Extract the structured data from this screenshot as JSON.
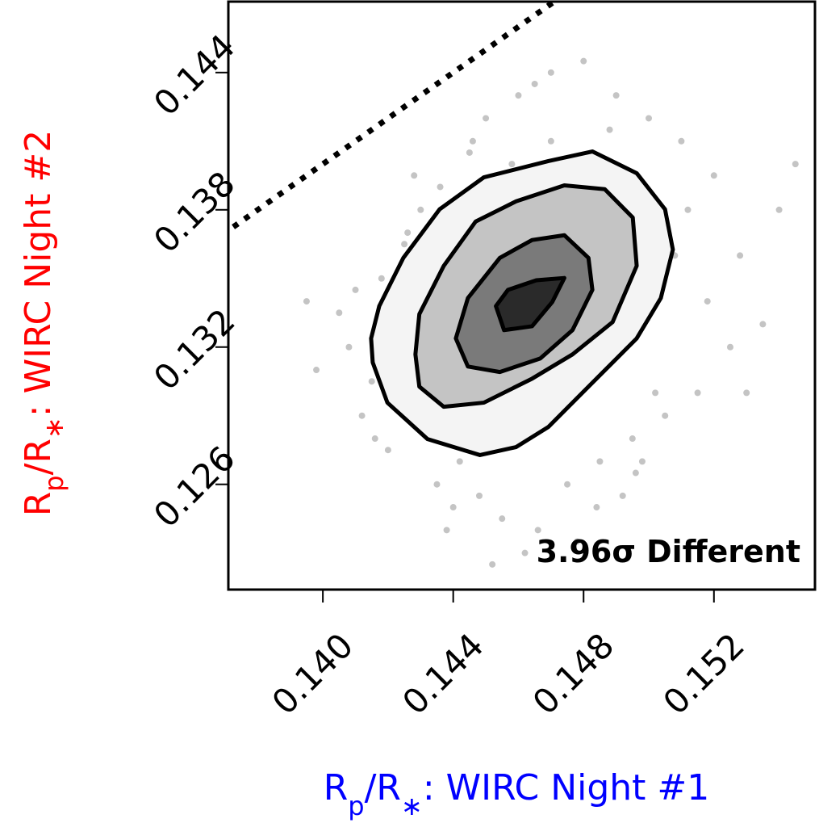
{
  "chart_data": {
    "type": "scatter",
    "annotation": "3.96σ Different",
    "xlabel": [
      "R",
      "p",
      "/R",
      "∗",
      ": WIRC Night #1"
    ],
    "ylabel": [
      "R",
      "p",
      "/R",
      "∗",
      ": WIRC Night #2"
    ],
    "xlabel_color": "#0000ff",
    "ylabel_color": "#ff0000",
    "xlim": [
      0.1371,
      0.1551
    ],
    "ylim": [
      0.1214,
      0.1471
    ],
    "xticks": [
      {
        "value": 0.14,
        "label": "0.140"
      },
      {
        "value": 0.144,
        "label": "0.144"
      },
      {
        "value": 0.148,
        "label": "0.148"
      },
      {
        "value": 0.152,
        "label": "0.152"
      }
    ],
    "yticks": [
      0.144,
      0.138,
      0.132,
      0.126
    ],
    "identity_line": true,
    "series": [
      {
        "color": "#555555",
        "x": [
          0.1398,
          0.1405,
          0.1412,
          0.1418,
          0.1408,
          0.142,
          0.1425,
          0.1415,
          0.143,
          0.1435,
          0.1428,
          0.144,
          0.1445,
          0.1438,
          0.145,
          0.1455,
          0.146,
          0.1448,
          0.1465,
          0.147,
          0.1475,
          0.148,
          0.1485,
          0.149,
          0.1495,
          0.15,
          0.1505,
          0.151,
          0.1515,
          0.152,
          0.1525,
          0.1512,
          0.1498,
          0.1508,
          0.1492,
          0.1478,
          0.1462,
          0.1452,
          0.1442,
          0.1432,
          0.1422,
          0.141,
          0.1502,
          0.1518,
          0.1528,
          0.1535,
          0.147,
          0.1458,
          0.1488,
          0.1436,
          0.1446,
          0.1466,
          0.1484,
          0.1496,
          0.1426,
          0.1416,
          0.153,
          0.154,
          0.1395,
          0.1545
        ],
        "values": [
          0.131,
          0.1335,
          0.129,
          0.135,
          0.132,
          0.1275,
          0.1365,
          0.1305,
          0.138,
          0.126,
          0.1395,
          0.125,
          0.1405,
          0.124,
          0.142,
          0.1245,
          0.143,
          0.1255,
          0.1435,
          0.144,
          0.126,
          0.1445,
          0.127,
          0.143,
          0.128,
          0.142,
          0.129,
          0.141,
          0.13,
          0.1395,
          0.132,
          0.138,
          0.127,
          0.136,
          0.1255,
          0.1235,
          0.123,
          0.1225,
          0.127,
          0.1285,
          0.13,
          0.1345,
          0.13,
          0.134,
          0.136,
          0.133,
          0.141,
          0.14,
          0.1415,
          0.139,
          0.141,
          0.124,
          0.125,
          0.1265,
          0.137,
          0.128,
          0.13,
          0.138,
          0.134,
          0.14
        ]
      }
    ],
    "contours": [
      {
        "fill": "#f4f4f4",
        "x": [
          0.14148,
          0.14173,
          0.14247,
          0.14358,
          0.14494,
          0.14692,
          0.14827,
          0.14963,
          0.1505,
          0.15074,
          0.15037,
          0.14963,
          0.14815,
          0.14692,
          0.14593,
          0.14482,
          0.14321,
          0.14198,
          0.14153
        ],
        "y": [
          0.13238,
          0.13379,
          0.1359,
          0.13802,
          0.13942,
          0.14013,
          0.14055,
          0.1396,
          0.13802,
          0.13626,
          0.13414,
          0.13238,
          0.13027,
          0.12851,
          0.12763,
          0.12728,
          0.12798,
          0.12957,
          0.13133
        ]
      },
      {
        "fill": "#c4c4c4",
        "x": [
          0.14284,
          0.14296,
          0.14371,
          0.14469,
          0.14593,
          0.14741,
          0.14865,
          0.14951,
          0.14963,
          0.14889,
          0.14766,
          0.14642,
          0.14494,
          0.14371,
          0.14296
        ],
        "y": [
          0.13168,
          0.13344,
          0.13555,
          0.13749,
          0.13837,
          0.13907,
          0.1389,
          0.13766,
          0.13555,
          0.13309,
          0.13168,
          0.13062,
          0.12957,
          0.12939,
          0.13027
        ]
      },
      {
        "fill": "#7a7a7a",
        "x": [
          0.14408,
          0.14445,
          0.14543,
          0.14642,
          0.14741,
          0.14815,
          0.14827,
          0.14766,
          0.14667,
          0.14543,
          0.14445
        ],
        "y": [
          0.13238,
          0.13414,
          0.1359,
          0.13668,
          0.13689,
          0.1359,
          0.1345,
          0.13274,
          0.1315,
          0.13091,
          0.13115
        ]
      },
      {
        "fill": "#2a2a2a",
        "x": [
          0.14531,
          0.14568,
          0.14655,
          0.14741,
          0.14704,
          0.14642,
          0.14556
        ],
        "y": [
          0.13379,
          0.1345,
          0.13492,
          0.13502,
          0.13397,
          0.13291,
          0.13274
        ]
      }
    ]
  }
}
